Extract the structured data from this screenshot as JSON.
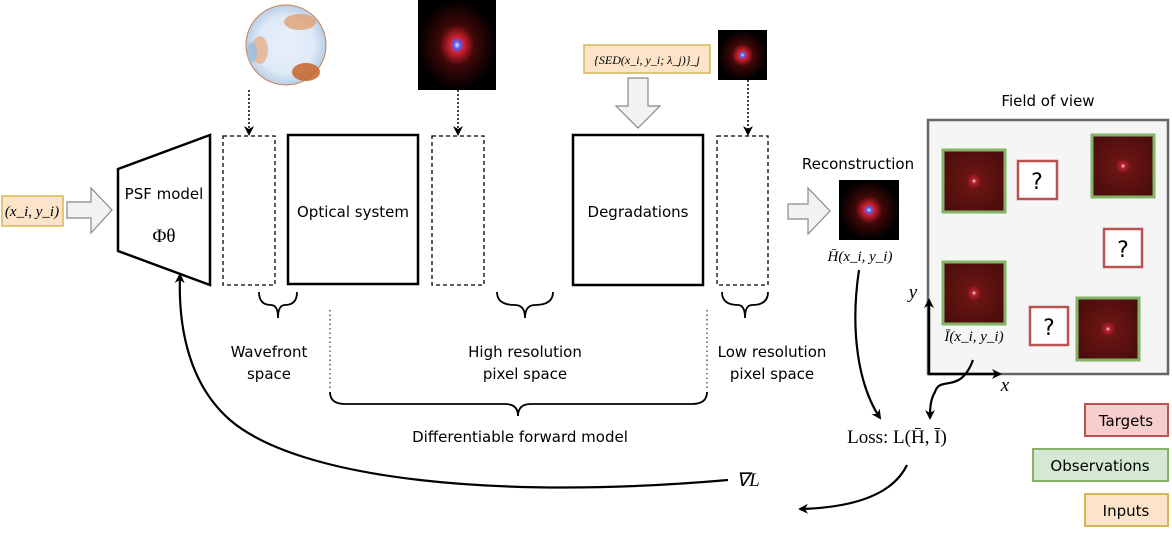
{
  "inputs": {
    "coords": "(x_i, y_i)",
    "sed": "{SED(x_i, y_i; λ_j)}_j"
  },
  "psf_model": {
    "title": "PSF model",
    "symbol": "Φθ"
  },
  "blocks": {
    "optical": "Optical system",
    "degradations": "Degradations"
  },
  "spaces": {
    "wavefront": [
      "Wavefront",
      "space"
    ],
    "high_res": [
      "High resolution",
      "pixel space"
    ],
    "low_res": [
      "Low resolution",
      "pixel space"
    ]
  },
  "forward_model": "Differentiable forward model",
  "reconstruction": {
    "title": "Reconstruction",
    "symbol": "H̄(x_i, y_i)"
  },
  "field_of_view": {
    "title": "Field of view",
    "observation_symbol": "Ī(x_i, y_i)",
    "target_mark": "?",
    "x_axis": "x",
    "y_axis": "y"
  },
  "loss": "Loss: L(H̄, Ī)",
  "gradient": "∇L",
  "legend": [
    {
      "label": "Targets",
      "fill": "#f8cecc",
      "stroke": "#b85450"
    },
    {
      "label": "Observations",
      "fill": "#d5e8d4",
      "stroke": "#82b366"
    },
    {
      "label": "Inputs",
      "fill": "#fce4c8",
      "stroke": "#d6b656"
    }
  ]
}
